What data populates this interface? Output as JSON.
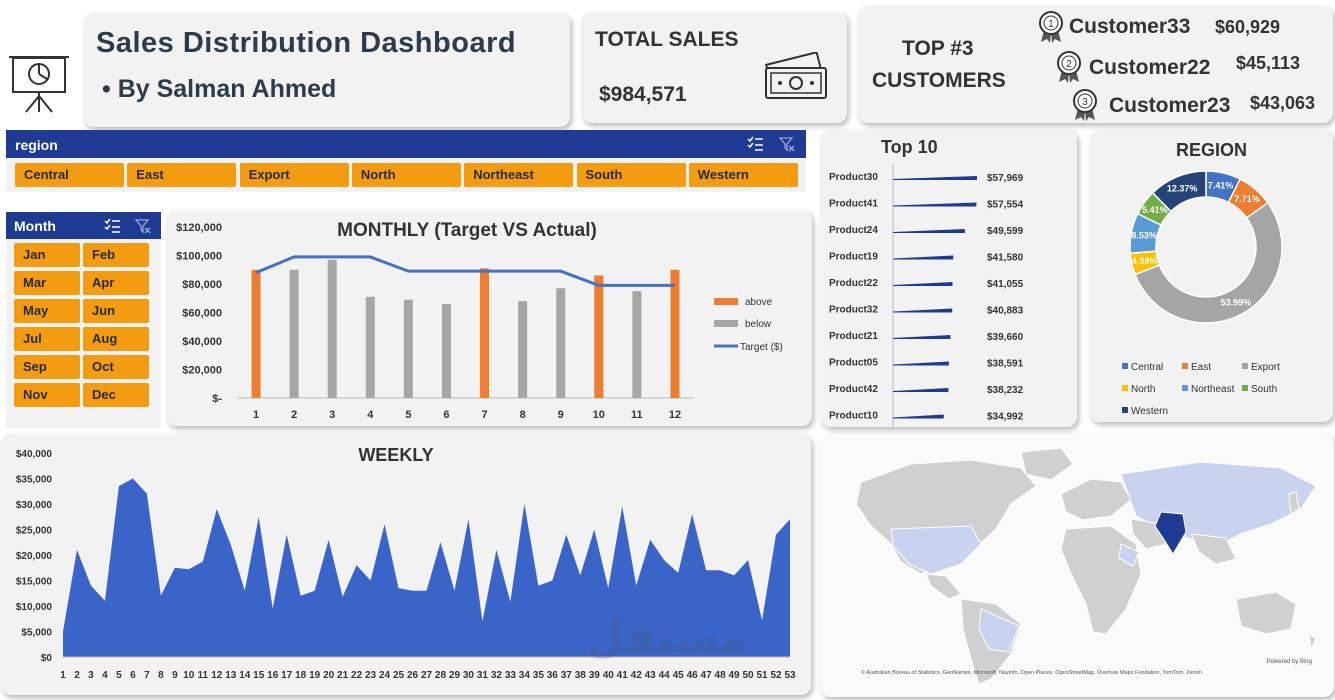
{
  "header": {
    "title": "Sales Distribution Dashboard",
    "subtitle": "• By Salman Ahmed",
    "logo_icon": "presentation-chart-icon"
  },
  "total_sales": {
    "label": "TOTAL SALES",
    "value": "$984,571",
    "icon": "money-icon"
  },
  "top_customers": {
    "label_line1": "TOP #3",
    "label_line2": "CUSTOMERS",
    "items": [
      {
        "rank": "1",
        "name": "Customer33",
        "value": "$60,929"
      },
      {
        "rank": "2",
        "name": "Customer22",
        "value": "$45,113"
      },
      {
        "rank": "3",
        "name": "Customer23",
        "value": "$43,063"
      }
    ]
  },
  "region_slicer": {
    "title": "region",
    "items": [
      "Central",
      "East",
      "Export",
      "North",
      "Northeast",
      "South",
      "Western"
    ]
  },
  "month_slicer": {
    "title": "Month",
    "items": [
      "Jan",
      "Feb",
      "Mar",
      "Apr",
      "May",
      "Jun",
      "Jul",
      "Aug",
      "Sep",
      "Oct",
      "Nov",
      "Dec"
    ]
  },
  "colors": {
    "accent_blue": "#1f3a93",
    "slicer_orange": "#f39c12",
    "above": "#ed7d31",
    "below": "#a6a6a6",
    "target": "#4472c4",
    "weekly_fill": "#3a64c8"
  },
  "chart_data": [
    {
      "id": "monthly",
      "type": "bar",
      "title": "MONTHLY (Target VS Actual)",
      "categories": [
        "1",
        "2",
        "3",
        "4",
        "5",
        "6",
        "7",
        "8",
        "9",
        "10",
        "11",
        "12"
      ],
      "series": [
        {
          "name": "above",
          "values": [
            90000,
            null,
            null,
            null,
            null,
            null,
            91000,
            null,
            null,
            86000,
            null,
            90000
          ]
        },
        {
          "name": "below",
          "values": [
            null,
            90000,
            97000,
            71000,
            69000,
            66000,
            null,
            68000,
            77000,
            null,
            75000,
            null
          ]
        },
        {
          "name": "Target ($)",
          "values": [
            88000,
            99000,
            99000,
            99000,
            89000,
            89000,
            89000,
            89000,
            89000,
            79000,
            79000,
            79000
          ]
        }
      ],
      "yticks": [
        "$-",
        "$20,000",
        "$40,000",
        "$60,000",
        "$80,000",
        "$100,000",
        "$120,000"
      ],
      "ylim": [
        0,
        120000
      ],
      "legend": "right"
    },
    {
      "id": "top10",
      "type": "bar",
      "title": "Top 10",
      "categories": [
        "Product30",
        "Product41",
        "Product24",
        "Product19",
        "Product22",
        "Product32",
        "Product21",
        "Product05",
        "Product42",
        "Product10"
      ],
      "values": [
        57969,
        57554,
        49599,
        41580,
        41055,
        40883,
        39660,
        38591,
        38232,
        34992
      ],
      "labels": [
        "$57,969",
        "$57,554",
        "$49,599",
        "$41,580",
        "$41,055",
        "$40,883",
        "$39,660",
        "$38,591",
        "$38,232",
        "$34,992"
      ]
    },
    {
      "id": "region",
      "type": "pie",
      "title": "REGION",
      "categories": [
        "Central",
        "East",
        "Export",
        "North",
        "Northeast",
        "South",
        "Western"
      ],
      "values": [
        7.41,
        7.71,
        53.99,
        4.58,
        8.53,
        5.41,
        12.37
      ],
      "labels": [
        "7.41%",
        "7.71%",
        "53.99%",
        "4.58%",
        "8.53%",
        "5.41%",
        "12.37%"
      ],
      "colors": [
        "#4472c4",
        "#ed7d31",
        "#a5a5a5",
        "#ffc000",
        "#5b9bd5",
        "#70ad47",
        "#264478"
      ],
      "legend": "bottom"
    },
    {
      "id": "weekly",
      "type": "area",
      "title": "WEEKLY",
      "x": [
        1,
        2,
        3,
        4,
        5,
        6,
        7,
        8,
        9,
        10,
        11,
        12,
        13,
        14,
        15,
        16,
        17,
        18,
        19,
        20,
        21,
        22,
        23,
        24,
        25,
        26,
        27,
        28,
        29,
        30,
        31,
        32,
        33,
        34,
        35,
        36,
        37,
        38,
        39,
        40,
        41,
        42,
        43,
        44,
        45,
        46,
        47,
        48,
        49,
        50,
        51,
        52,
        53
      ],
      "values": [
        5000,
        21000,
        14000,
        11000,
        33500,
        35000,
        32000,
        12000,
        17500,
        17200,
        18700,
        29000,
        22000,
        13000,
        27500,
        9500,
        24000,
        12000,
        13000,
        23000,
        11800,
        18000,
        15000,
        26000,
        13500,
        13000,
        13000,
        22500,
        13000,
        27000,
        7000,
        21000,
        10800,
        30000,
        14000,
        15000,
        24000,
        16000,
        25000,
        13500,
        29500,
        14000,
        23000,
        19000,
        16500,
        28000,
        17000,
        17000,
        16000,
        19000,
        7200,
        24000,
        27000
      ],
      "yticks": [
        "$0",
        "$5,000",
        "$10,000",
        "$15,000",
        "$20,000",
        "$25,000",
        "$30,000",
        "$35,000",
        "$40,000"
      ],
      "ylim": [
        0,
        40000
      ]
    }
  ],
  "map": {
    "credit_bing": "Powered by Bing",
    "credit_line": "© Australian Bureau of Statistics, GeoNames, Microsoft, Navinfo, Open Places, OpenStreetMap, Overture Maps Fundation, TomTom, Zenrin"
  },
  "watermark": "مستقل"
}
